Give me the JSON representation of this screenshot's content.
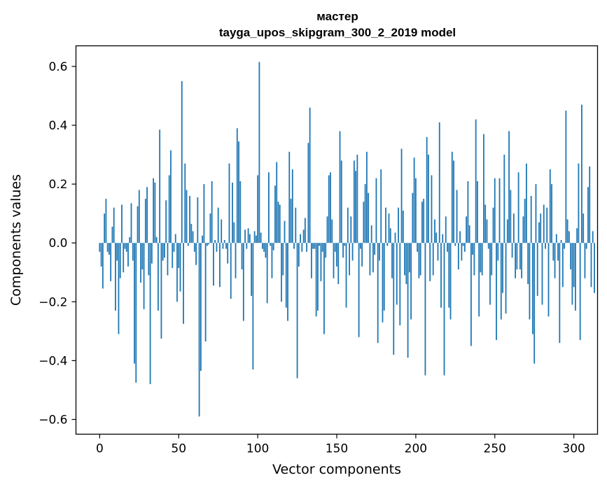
{
  "chart_data": {
    "type": "bar",
    "title_line1": "мастер",
    "title_line2": "tayga_upos_skipgram_300_2_2019 model",
    "xlabel": "Vector components",
    "ylabel": "Components values",
    "xlim": [
      -15,
      315
    ],
    "ylim": [
      -0.65,
      0.67
    ],
    "xticks": [
      0,
      50,
      100,
      150,
      200,
      250,
      300
    ],
    "xtick_labels": [
      "0",
      "50",
      "100",
      "150",
      "200",
      "250",
      "300"
    ],
    "yticks": [
      -0.6,
      -0.4,
      -0.2,
      0.0,
      0.2,
      0.4,
      0.6
    ],
    "ytick_labels": [
      "−0.6",
      "−0.4",
      "−0.2",
      "0.0",
      "0.2",
      "0.4",
      "0.6"
    ],
    "bar_color": "#1f77b4",
    "values": [
      -0.03,
      -0.08,
      -0.155,
      0.1,
      0.15,
      -0.03,
      -0.04,
      -0.13,
      0.055,
      0.12,
      -0.23,
      -0.06,
      -0.31,
      -0.12,
      0.13,
      -0.1,
      -0.02,
      -0.03,
      -0.08,
      0.02,
      0.135,
      -0.06,
      -0.41,
      -0.475,
      0.125,
      0.18,
      -0.135,
      -0.09,
      -0.225,
      0.15,
      0.19,
      -0.11,
      -0.48,
      -0.07,
      0.22,
      0.205,
      0.02,
      -0.23,
      0.385,
      -0.325,
      -0.06,
      -0.05,
      0.145,
      -0.11,
      0.23,
      0.315,
      -0.085,
      -0.03,
      0.03,
      -0.2,
      -0.085,
      -0.165,
      0.55,
      -0.275,
      0.27,
      0.18,
      -0.01,
      0.16,
      0.065,
      0.04,
      -0.03,
      -0.075,
      0.155,
      -0.59,
      -0.435,
      0.025,
      0.2,
      -0.335,
      -0.01,
      -0.005,
      0.1,
      0.21,
      -0.145,
      0.01,
      -0.03,
      0.12,
      -0.15,
      0.08,
      -0.02,
      0.01,
      -0.02,
      -0.07,
      0.27,
      -0.19,
      0.205,
      0.07,
      -0.12,
      0.39,
      0.345,
      0.21,
      -0.09,
      -0.265,
      0.045,
      -0.02,
      0.05,
      0.03,
      -0.18,
      -0.43,
      0.04,
      0.025,
      0.23,
      0.615,
      0.035,
      -0.02,
      -0.03,
      -0.05,
      -0.205,
      0.24,
      -0.01,
      -0.12,
      -0.025,
      0.195,
      0.275,
      0.14,
      0.13,
      -0.2,
      -0.11,
      0.075,
      -0.22,
      -0.265,
      0.31,
      0.15,
      0.25,
      -0.02,
      0.12,
      -0.46,
      -0.08,
      0.03,
      -0.03,
      0.045,
      0.085,
      -0.03,
      0.34,
      0.46,
      -0.12,
      -0.02,
      -0.02,
      -0.25,
      -0.23,
      -0.01,
      -0.13,
      -0.03,
      -0.31,
      -0.05,
      0.09,
      0.23,
      0.24,
      0.08,
      -0.12,
      -0.03,
      -0.08,
      -0.14,
      0.38,
      0.28,
      -0.05,
      -0.01,
      -0.22,
      0.12,
      -0.11,
      0.09,
      -0.06,
      0.28,
      0.245,
      0.3,
      -0.32,
      -0.02,
      -0.08,
      0.14,
      0.2,
      0.31,
      0.17,
      -0.11,
      0.06,
      -0.1,
      -0.04,
      0.22,
      -0.34,
      -0.06,
      0.25,
      -0.27,
      -0.23,
      0.12,
      -0.01,
      0.1,
      0.05,
      -0.12,
      -0.38,
      0.035,
      -0.21,
      0.12,
      -0.28,
      0.32,
      0.11,
      -0.11,
      -0.14,
      -0.39,
      -0.1,
      -0.26,
      0.17,
      0.29,
      0.22,
      -0.03,
      -0.12,
      -0.11,
      0.14,
      0.15,
      -0.45,
      0.36,
      0.3,
      -0.13,
      0.23,
      -0.11,
      0.08,
      0.035,
      -0.06,
      0.41,
      -0.22,
      0.03,
      -0.45,
      0.09,
      -0.03,
      -0.22,
      -0.26,
      0.31,
      0.28,
      -0.01,
      0.18,
      -0.09,
      0.04,
      -0.06,
      -0.01,
      -0.03,
      0.09,
      0.21,
      0.06,
      -0.35,
      -0.04,
      -0.11,
      0.42,
      0.21,
      -0.25,
      -0.1,
      -0.11,
      0.37,
      0.13,
      0.08,
      -0.02,
      -0.21,
      -0.11,
      0.12,
      0.22,
      -0.33,
      -0.06,
      0.22,
      -0.26,
      -0.17,
      0.3,
      -0.24,
      0.08,
      0.38,
      0.18,
      -0.05,
      0.1,
      -0.12,
      -0.09,
      0.24,
      -0.09,
      -0.12,
      0.09,
      0.15,
      0.27,
      -0.14,
      -0.26,
      0.16,
      -0.31,
      -0.41,
      0.2,
      -0.18,
      0.07,
      0.1,
      -0.21,
      0.13,
      -0.02,
      0.12,
      -0.25,
      0.25,
      0.2,
      -0.06,
      -0.12,
      0.03,
      -0.06,
      -0.34,
      0.01,
      -0.15,
      -0.02,
      0.45,
      0.08,
      0.04,
      -0.09,
      -0.21,
      -0.15,
      -0.23,
      0.05,
      0.27,
      -0.33,
      0.47,
      0.1,
      -0.12,
      -0.02,
      0.19,
      0.26,
      -0.15,
      0.04,
      -0.17
    ]
  }
}
